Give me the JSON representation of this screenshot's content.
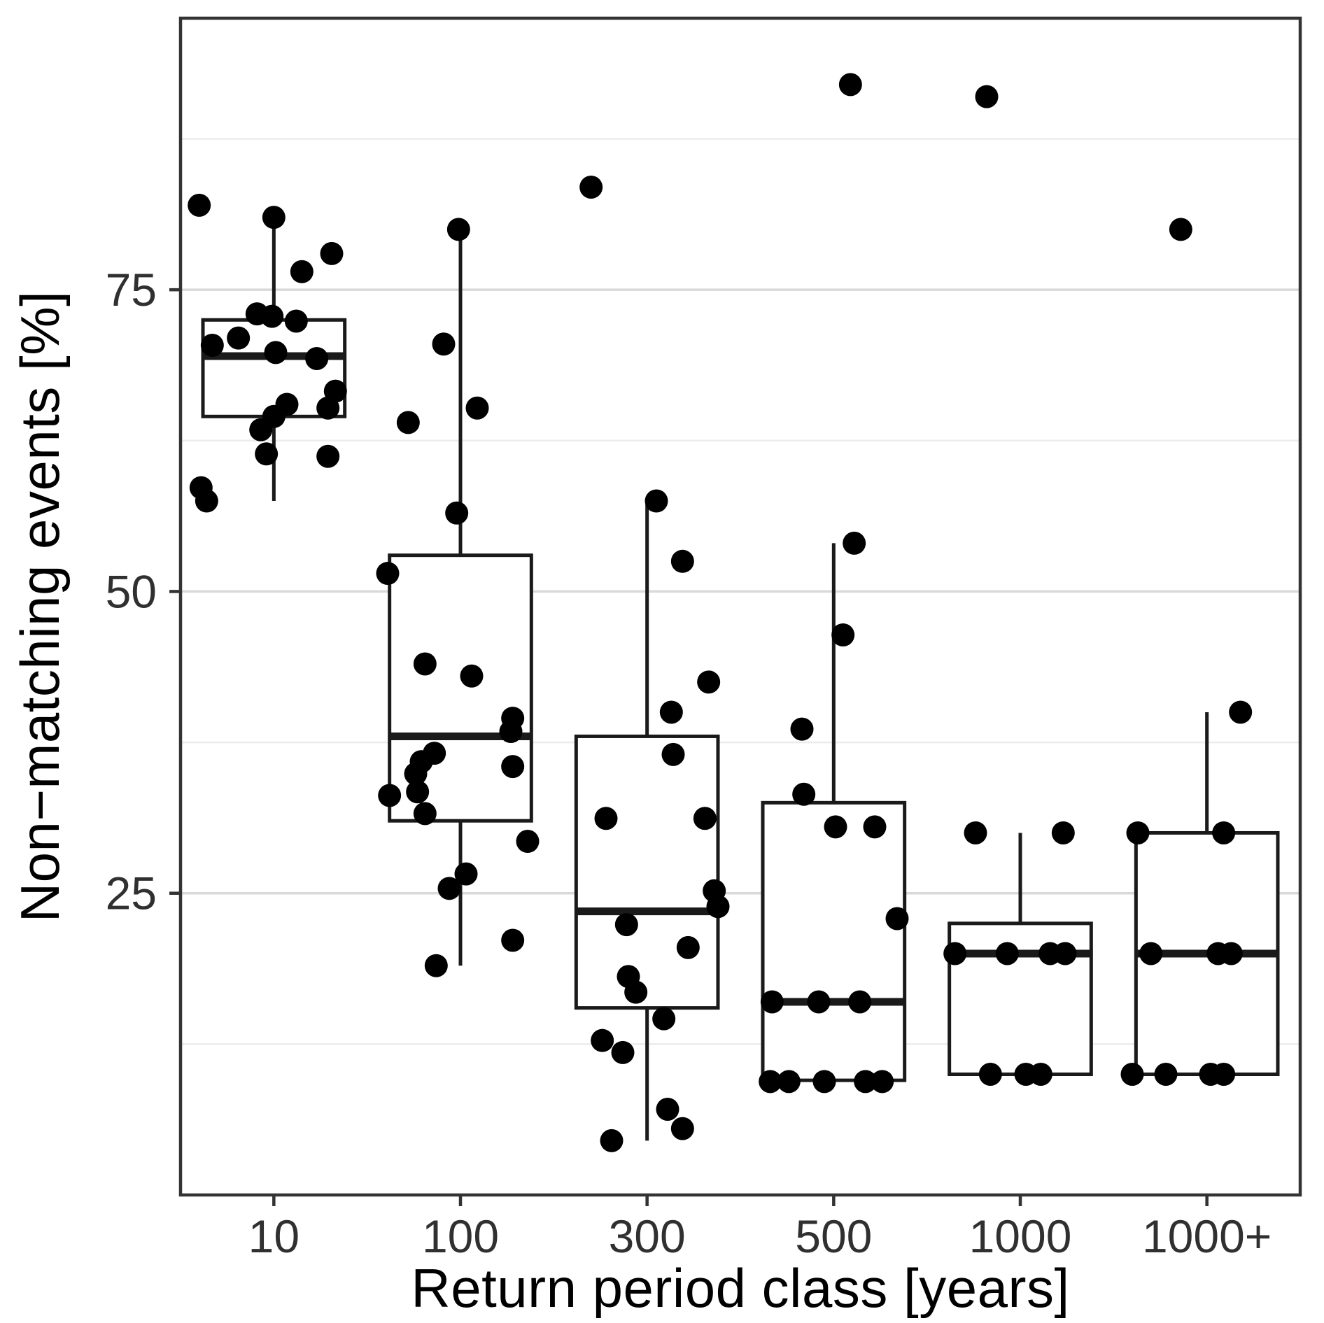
{
  "chart_data": {
    "type": "boxplot",
    "title": "",
    "xlabel": "Return period class [years]",
    "ylabel": "Non−matching events [%]",
    "categories": [
      "10",
      "100",
      "300",
      "500",
      "1000",
      "1000+"
    ],
    "y_ticks": [
      25,
      50,
      75
    ],
    "y_minor_gridlines": [
      12.5,
      37.5,
      62.5,
      87.5
    ],
    "ylim": [
      0,
      97.5
    ],
    "legend": "none",
    "grid": "horizontal major and minor gridlines",
    "boxes": [
      {
        "category": "10",
        "min": 57.5,
        "q1": 64.5,
        "median": 69.5,
        "q3": 72.5,
        "max": 81,
        "points": [
          [
            -0.4,
            82
          ],
          [
            0.0,
            81
          ],
          [
            0.31,
            78
          ],
          [
            0.15,
            76.5
          ],
          [
            -0.09,
            73
          ],
          [
            -0.01,
            72.8
          ],
          [
            0.12,
            72.4
          ],
          [
            -0.19,
            71
          ],
          [
            -0.33,
            70.4
          ],
          [
            0.01,
            69.8
          ],
          [
            0.23,
            69.3
          ],
          [
            0.33,
            66.6
          ],
          [
            0.07,
            65.5
          ],
          [
            0.29,
            65.2
          ],
          [
            0.0,
            64.5
          ],
          [
            -0.07,
            63.4
          ],
          [
            -0.04,
            61.4
          ],
          [
            0.29,
            61.2
          ],
          [
            -0.39,
            58.6
          ],
          [
            -0.36,
            57.5
          ]
        ]
      },
      {
        "category": "100",
        "min": 19,
        "q1": 31,
        "median": 38,
        "q3": 53,
        "max": 80,
        "points": [
          [
            -0.01,
            80
          ],
          [
            -0.09,
            70.5
          ],
          [
            0.09,
            65.2
          ],
          [
            -0.28,
            64
          ],
          [
            -0.02,
            56.5
          ],
          [
            -0.39,
            51.5
          ],
          [
            -0.19,
            44
          ],
          [
            0.06,
            43
          ],
          [
            0.28,
            39.5
          ],
          [
            0.27,
            38.4
          ],
          [
            -0.14,
            36.6
          ],
          [
            -0.21,
            35.9
          ],
          [
            0.28,
            35.5
          ],
          [
            -0.24,
            34.9
          ],
          [
            -0.23,
            33.4
          ],
          [
            -0.38,
            33.1
          ],
          [
            -0.19,
            31.6
          ],
          [
            0.36,
            29.3
          ],
          [
            0.03,
            26.6
          ],
          [
            -0.06,
            25.4
          ],
          [
            0.28,
            21.1
          ],
          [
            -0.13,
            19
          ]
        ]
      },
      {
        "category": "300",
        "min": 4.5,
        "q1": 15.5,
        "median": 23.5,
        "q3": 38,
        "max": 57.5,
        "points": [
          [
            -0.3,
            83.5
          ],
          [
            0.05,
            57.5
          ],
          [
            0.19,
            52.5
          ],
          [
            0.33,
            42.5
          ],
          [
            0.13,
            40
          ],
          [
            0.14,
            36.5
          ],
          [
            -0.22,
            31.2
          ],
          [
            0.31,
            31.2
          ],
          [
            0.36,
            25.2
          ],
          [
            0.38,
            23.9
          ],
          [
            -0.11,
            22.4
          ],
          [
            0.22,
            20.5
          ],
          [
            -0.1,
            18.1
          ],
          [
            -0.06,
            16.8
          ],
          [
            0.09,
            14.6
          ],
          [
            -0.24,
            12.8
          ],
          [
            -0.13,
            11.8
          ],
          [
            0.11,
            7.1
          ],
          [
            0.19,
            5.5
          ],
          [
            -0.19,
            4.5
          ]
        ]
      },
      {
        "category": "500",
        "min": 9.5,
        "q1": 9.5,
        "median": 16,
        "q3": 32.5,
        "max": 54,
        "points": [
          [
            0.09,
            92
          ],
          [
            0.11,
            54
          ],
          [
            0.05,
            46.4
          ],
          [
            -0.17,
            38.6
          ],
          [
            -0.16,
            33.2
          ],
          [
            0.01,
            30.5
          ],
          [
            0.22,
            30.5
          ],
          [
            0.34,
            22.9
          ],
          [
            -0.33,
            16
          ],
          [
            -0.08,
            16
          ],
          [
            0.14,
            16
          ],
          [
            -0.34,
            9.4
          ],
          [
            -0.24,
            9.4
          ],
          [
            -0.05,
            9.4
          ],
          [
            0.17,
            9.4
          ],
          [
            0.26,
            9.4
          ]
        ]
      },
      {
        "category": "1000",
        "min": 10,
        "q1": 10,
        "median": 20,
        "q3": 22.5,
        "max": 30,
        "points": [
          [
            -0.18,
            91
          ],
          [
            -0.24,
            30
          ],
          [
            0.23,
            30
          ],
          [
            -0.35,
            20
          ],
          [
            -0.07,
            20
          ],
          [
            0.16,
            20
          ],
          [
            0.24,
            20
          ],
          [
            -0.16,
            10
          ],
          [
            0.03,
            10
          ],
          [
            0.11,
            10
          ]
        ]
      },
      {
        "category": "1000+",
        "min": 10,
        "q1": 10,
        "median": 20,
        "q3": 30,
        "max": 40,
        "points": [
          [
            -0.14,
            80
          ],
          [
            0.18,
            40
          ],
          [
            -0.37,
            30
          ],
          [
            0.09,
            30
          ],
          [
            -0.3,
            20
          ],
          [
            0.06,
            20
          ],
          [
            0.13,
            20
          ],
          [
            -0.4,
            10
          ],
          [
            -0.22,
            10
          ],
          [
            0.02,
            10
          ],
          [
            0.09,
            10
          ]
        ]
      }
    ],
    "colors": {
      "background": "#ffffff",
      "panel_border": "#333333",
      "grid_major": "#d9d9d9",
      "grid_minor": "#ececec",
      "box_stroke": "#1a1a1a",
      "box_fill": "#ffffff",
      "median": "#1a1a1a",
      "point": "#000000",
      "tick_label": "#303030",
      "axis_title": "#000000"
    }
  }
}
